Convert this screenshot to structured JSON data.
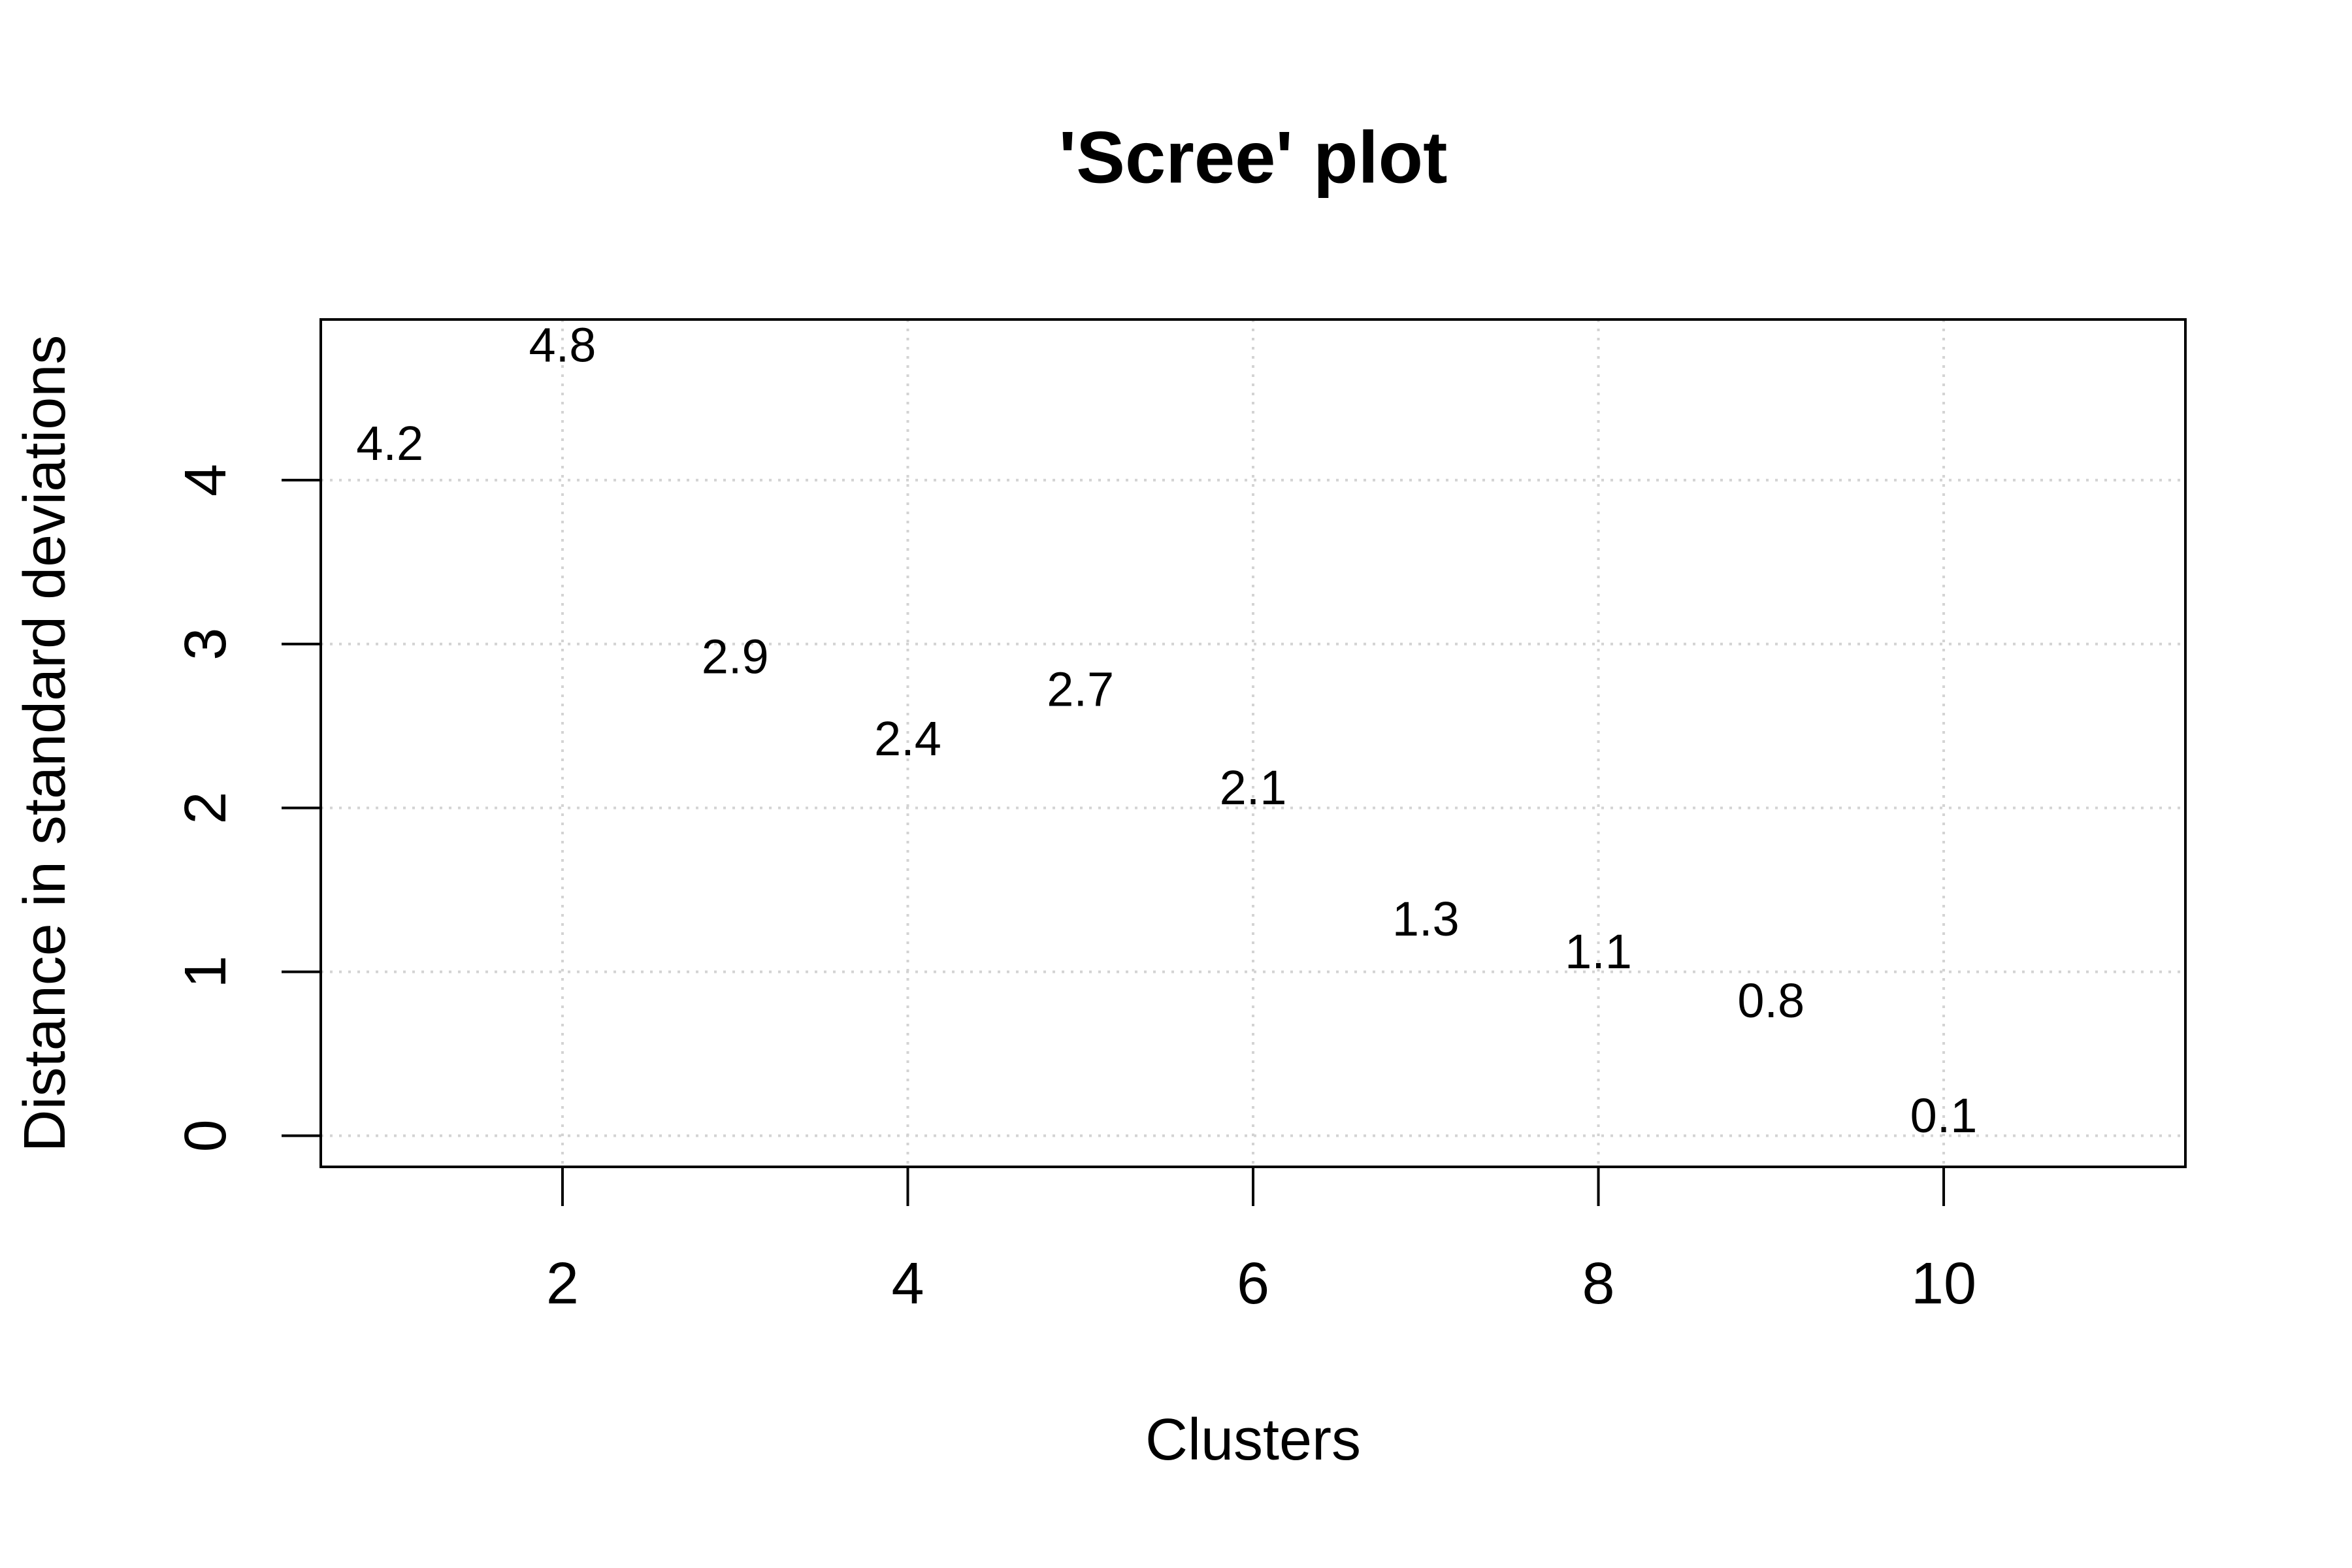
{
  "chart_data": {
    "type": "scatter",
    "title": "'Scree' plot",
    "xlabel": "Clusters",
    "ylabel": "Distance in standard deviations",
    "x": [
      1,
      2,
      3,
      4,
      5,
      6,
      7,
      8,
      9,
      10
    ],
    "y": [
      4.2,
      4.8,
      2.9,
      2.4,
      2.7,
      2.1,
      1.3,
      1.1,
      0.8,
      0.1
    ],
    "xlim": [
      0.6,
      11.4
    ],
    "ylim": [
      -0.19,
      4.98
    ],
    "xticks": [
      2,
      4,
      6,
      8,
      10
    ],
    "yticks": [
      0,
      1,
      2,
      3,
      4
    ],
    "grid": true
  }
}
